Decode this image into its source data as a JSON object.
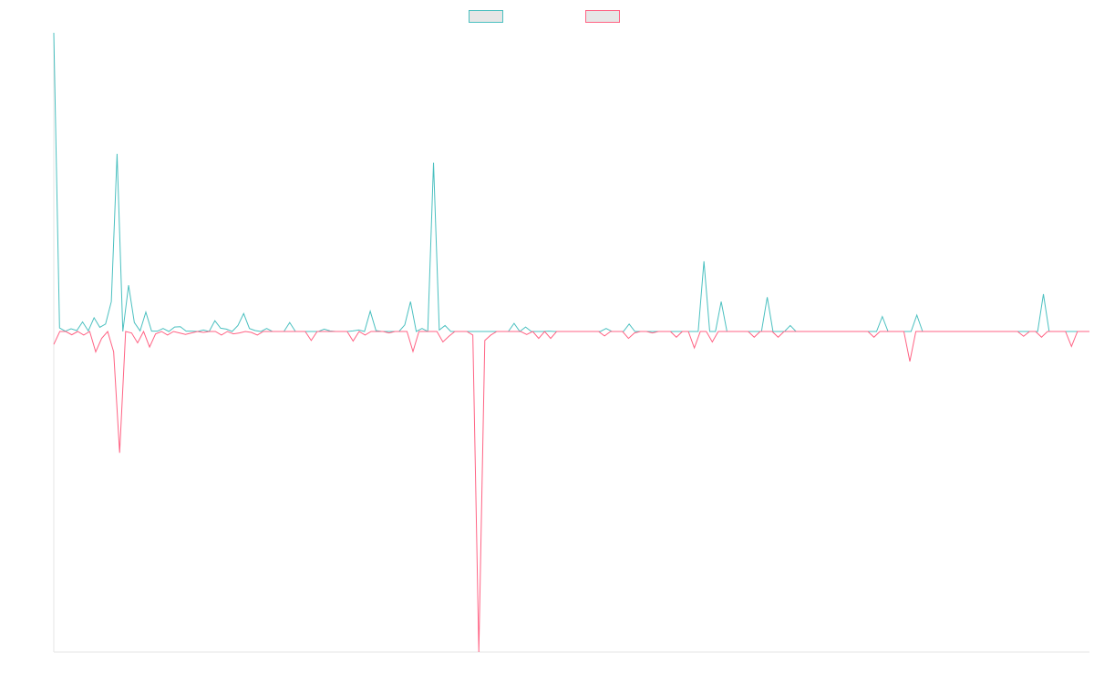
{
  "chart_data": {
    "type": "line",
    "series": [
      {
        "name": "",
        "color": "#4bc0c0",
        "values": [
          100,
          1.2,
          0.1,
          0.9,
          0.3,
          3.2,
          0.2,
          4.6,
          1.4,
          2.5,
          10,
          59.5,
          0,
          15.5,
          3,
          0.2,
          6.5,
          0.1,
          0.1,
          1,
          0,
          1.5,
          1.6,
          0.1,
          0.1,
          0,
          0.5,
          0,
          3.6,
          1.1,
          0.8,
          0,
          2,
          6,
          1,
          0.3,
          0,
          1,
          0,
          0,
          0,
          3,
          0,
          0,
          0,
          0,
          0,
          0.8,
          0.2,
          0,
          0,
          0,
          0.2,
          0.5,
          0,
          6.8,
          0.3,
          0,
          0,
          0,
          0,
          2.2,
          10,
          0,
          1,
          0,
          56.5,
          0.5,
          2,
          0,
          0,
          0,
          0,
          0,
          0,
          0,
          0,
          0,
          0,
          0,
          2.7,
          0,
          1.5,
          0,
          0,
          0,
          0.1,
          0,
          0,
          0,
          0,
          0,
          0,
          0,
          0,
          0,
          1,
          0,
          0,
          0,
          2.5,
          0,
          0,
          0,
          0,
          0,
          0,
          0,
          0,
          0,
          0,
          0,
          0,
          23.5,
          0,
          0,
          10,
          0,
          0,
          0,
          0,
          0,
          0,
          0,
          11.5,
          0,
          0,
          0,
          2,
          0,
          0,
          0,
          0,
          0,
          0,
          0,
          0,
          0,
          0,
          0,
          0,
          0,
          0,
          0,
          5,
          0,
          0,
          0,
          0,
          0,
          5.5,
          0,
          0,
          0,
          0,
          0,
          0,
          0,
          0,
          0,
          0,
          0,
          0,
          0,
          0,
          0,
          0,
          0,
          0,
          0,
          0,
          0,
          12.5,
          0,
          0,
          0,
          0,
          0,
          0,
          0,
          0
        ],
        "negative": false
      },
      {
        "name": "",
        "color": "#ff6384",
        "values": [
          -4.3,
          0,
          0,
          -1.1,
          0,
          -1.2,
          0,
          -6.8,
          -2.3,
          0,
          -6.8,
          -40.5,
          0,
          -0.5,
          -3.8,
          0,
          -5.2,
          -0.8,
          0,
          -1.2,
          0,
          -0.5,
          -1,
          -0.5,
          0,
          -0.3,
          0,
          0,
          -1.2,
          0,
          -0.8,
          -0.5,
          0,
          -0.3,
          -1.2,
          0,
          0,
          0,
          0,
          0,
          0,
          0,
          0,
          -3,
          0,
          0,
          0,
          0,
          0,
          0,
          -3.2,
          0,
          -1.2,
          0,
          0,
          0,
          -0.5,
          0,
          0,
          0,
          -6.7,
          0,
          0,
          0,
          0,
          -3.5,
          -1.6,
          0,
          0,
          0,
          -1.2,
          -107,
          -3,
          -1.2,
          0,
          0,
          0,
          0,
          0,
          -1,
          0,
          -2.3,
          0,
          -2.3,
          0,
          0,
          0,
          0,
          0,
          0,
          0,
          0,
          -1.5,
          0,
          0,
          0,
          -2.3,
          -0.5,
          0,
          0,
          -0.5,
          0,
          0,
          0,
          -1.9,
          0,
          0,
          -5.5,
          0,
          0,
          -3.5,
          0,
          0,
          0,
          0,
          0,
          0,
          -1.9,
          0,
          0,
          0,
          -1.9,
          0,
          0,
          0,
          0,
          0,
          0,
          0,
          0,
          0,
          0,
          0,
          0,
          0,
          0,
          0,
          -1.9,
          0,
          0,
          0,
          0,
          0,
          -10,
          0,
          0,
          0,
          0,
          0,
          0,
          0,
          0,
          0,
          0,
          0,
          0,
          0,
          0,
          0,
          0,
          0,
          0,
          -1.6,
          0,
          0,
          -1.9,
          0,
          0,
          0,
          0,
          -5,
          0,
          0,
          0
        ],
        "negative": true
      }
    ],
    "ylim": [
      -107,
      100
    ],
    "grid": false,
    "legend_position": "top-center"
  }
}
